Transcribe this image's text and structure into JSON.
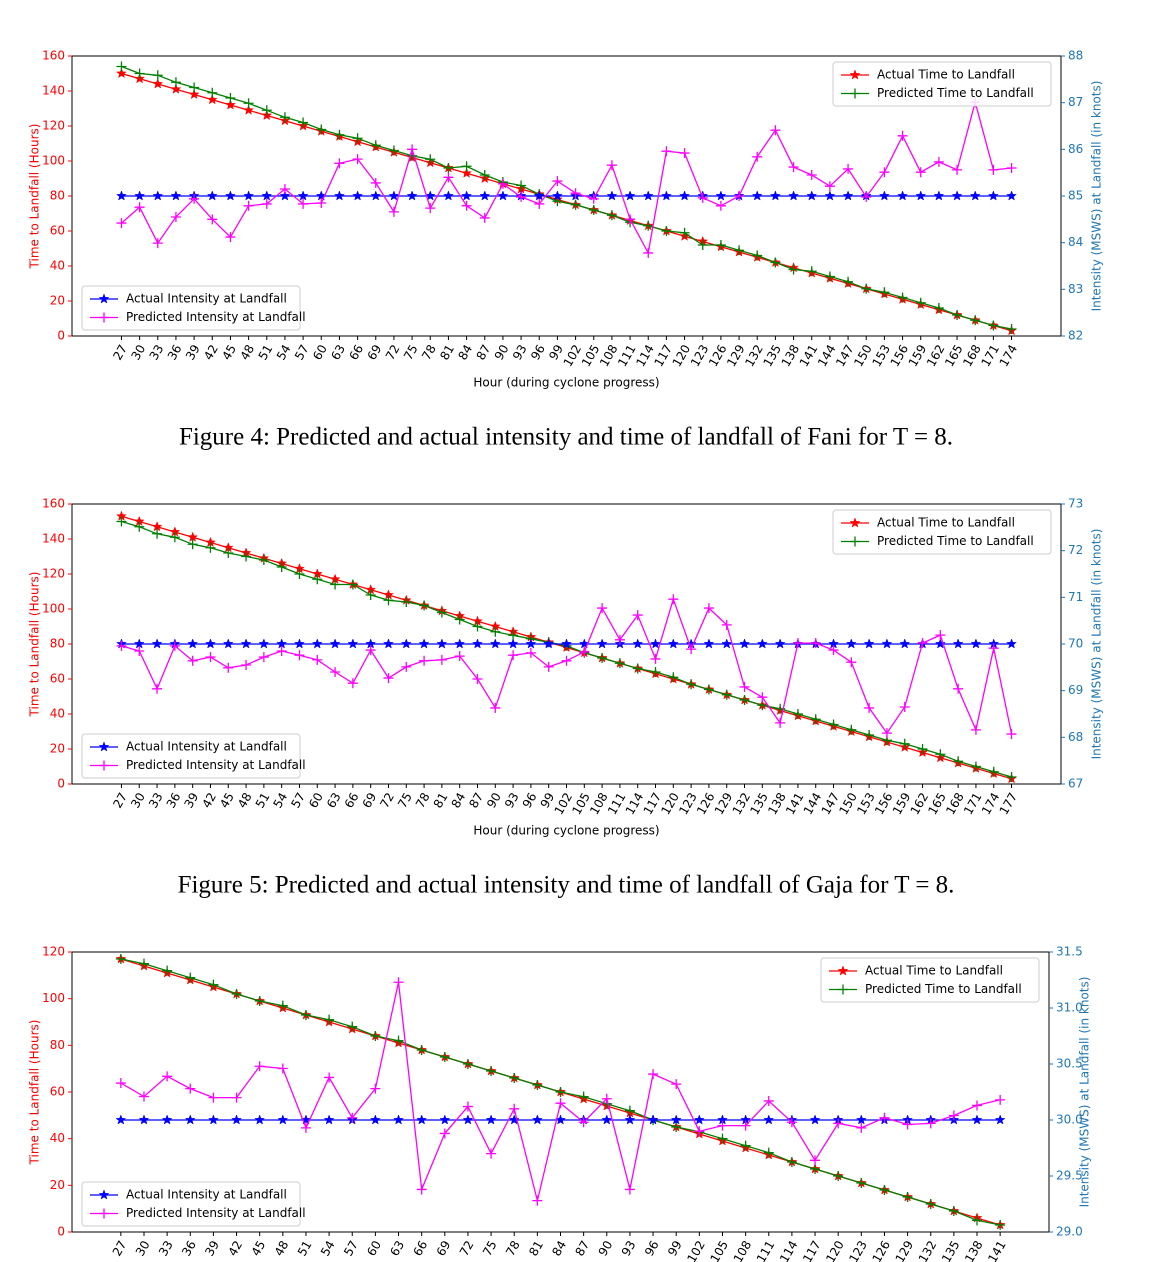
{
  "chart_data": [
    {
      "type": "line",
      "caption": "Figure 4: Predicted and actual intensity and time of landfall of Fani for T = 8.",
      "xlabel": "Hour (during cyclone progress)",
      "ylabel": "Time to Landfall (Hours)",
      "y2label": "Intensity (MSWS) at Landfall (in knots)",
      "categories": [
        "27",
        "30",
        "33",
        "36",
        "39",
        "42",
        "45",
        "48",
        "51",
        "54",
        "57",
        "60",
        "63",
        "66",
        "69",
        "72",
        "75",
        "78",
        "81",
        "84",
        "87",
        "90",
        "93",
        "96",
        "99",
        "102",
        "105",
        "108",
        "111",
        "114",
        "117",
        "120",
        "123",
        "126",
        "129",
        "132",
        "135",
        "138",
        "141",
        "144",
        "147",
        "150",
        "153",
        "156",
        "159",
        "162",
        "165",
        "168",
        "171",
        "174"
      ],
      "ylim": [
        0,
        160
      ],
      "yticks": [
        0,
        20,
        40,
        60,
        80,
        100,
        120,
        140,
        160
      ],
      "y2lim": [
        82,
        88
      ],
      "y2ticks": [
        82,
        83,
        84,
        85,
        86,
        87,
        88
      ],
      "legend_loc": "upper right",
      "legend2_loc": "lower left",
      "ylabel_color": "#ff0000",
      "y2label_color": "#1f77b4",
      "series": [
        {
          "name": "Actual Time to Landfall",
          "color": "#ff0000",
          "marker": "star",
          "values": [
            150,
            147,
            144,
            141,
            138,
            135,
            132,
            129,
            126,
            123,
            120,
            117,
            114,
            111,
            108,
            105,
            102,
            99,
            96,
            93,
            90,
            87,
            84,
            81,
            78,
            75,
            72,
            69,
            66,
            63,
            60,
            57,
            54,
            51,
            48,
            45,
            42,
            39,
            36,
            33,
            30,
            27,
            24,
            21,
            18,
            15,
            12,
            9,
            6,
            3
          ]
        },
        {
          "name": "Predicted Time to Landfall",
          "color": "#008000",
          "marker": "plus",
          "values": [
            154,
            150,
            149,
            145,
            142,
            139,
            136,
            133,
            129,
            125,
            122,
            118,
            115,
            113,
            109,
            106,
            103,
            101,
            96,
            97,
            92,
            88,
            86,
            81,
            77,
            75,
            72,
            69,
            65,
            63,
            60,
            59,
            52,
            52,
            49,
            46,
            42,
            38,
            37,
            34,
            31,
            27,
            25,
            22,
            19,
            16,
            12,
            9,
            6,
            4
          ]
        },
        {
          "name": "Actual Intensity at Landfall",
          "color": "#0000ff",
          "marker": "star",
          "axis": "y2",
          "values": [
            85,
            85,
            85,
            85,
            85,
            85,
            85,
            85,
            85,
            85,
            85,
            85,
            85,
            85,
            85,
            85,
            85,
            85,
            85,
            85,
            85,
            85,
            85,
            85,
            85,
            85,
            85,
            85,
            85,
            85,
            85,
            85,
            85,
            85,
            85,
            85,
            85,
            85,
            85,
            85,
            85,
            85,
            85,
            85,
            85,
            85,
            85,
            85,
            85,
            85
          ]
        },
        {
          "name": "Predicted Intensity at Landfall",
          "color": "#ff00ff",
          "marker": "plus",
          "axis": "y2",
          "values": [
            84.42,
            84.76,
            83.99,
            84.55,
            84.94,
            84.5,
            84.12,
            84.79,
            84.83,
            85.15,
            84.83,
            84.85,
            85.7,
            85.79,
            85.28,
            84.66,
            86.0,
            84.74,
            85.4,
            84.79,
            84.53,
            85.26,
            84.98,
            84.83,
            85.32,
            85.06,
            84.94,
            85.66,
            84.5,
            83.78,
            85.96,
            85.92,
            84.96,
            84.79,
            85.0,
            85.84,
            86.41,
            85.62,
            85.45,
            85.21,
            85.58,
            84.98,
            85.51,
            86.29,
            85.51,
            85.73,
            85.56,
            87.01,
            85.56,
            85.6
          ]
        }
      ]
    },
    {
      "type": "line",
      "caption": "Figure 5: Predicted and actual intensity and time of landfall of Gaja for T = 8.",
      "xlabel": "Hour (during cyclone progress)",
      "ylabel": "Time to Landfall (Hours)",
      "y2label": "Intensity (MSWS) at Landfall (in knots)",
      "categories": [
        "27",
        "30",
        "33",
        "36",
        "39",
        "42",
        "45",
        "48",
        "51",
        "54",
        "57",
        "60",
        "63",
        "66",
        "69",
        "72",
        "75",
        "78",
        "81",
        "84",
        "87",
        "90",
        "93",
        "96",
        "99",
        "102",
        "105",
        "108",
        "111",
        "114",
        "117",
        "120",
        "123",
        "126",
        "129",
        "132",
        "135",
        "138",
        "141",
        "144",
        "147",
        "150",
        "153",
        "156",
        "159",
        "162",
        "165",
        "168",
        "171",
        "174",
        "177"
      ],
      "ylim": [
        0,
        160
      ],
      "yticks": [
        0,
        20,
        40,
        60,
        80,
        100,
        120,
        140,
        160
      ],
      "y2lim": [
        67,
        73
      ],
      "y2ticks": [
        67,
        68,
        69,
        70,
        71,
        72,
        73
      ],
      "legend_loc": "upper right",
      "legend2_loc": "lower left",
      "ylabel_color": "#ff0000",
      "y2label_color": "#1f77b4",
      "series": [
        {
          "name": "Actual Time to Landfall",
          "color": "#ff0000",
          "marker": "star",
          "values": [
            153,
            150,
            147,
            144,
            141,
            138,
            135,
            132,
            129,
            126,
            123,
            120,
            117,
            114,
            111,
            108,
            105,
            102,
            99,
            96,
            93,
            90,
            87,
            84,
            81,
            78,
            75,
            72,
            69,
            66,
            63,
            60,
            57,
            54,
            51,
            48,
            45,
            42,
            39,
            36,
            33,
            30,
            27,
            24,
            21,
            18,
            15,
            12,
            9,
            6,
            3
          ]
        },
        {
          "name": "Predicted Time to Landfall",
          "color": "#008000",
          "marker": "plus",
          "values": [
            150,
            147,
            143,
            141,
            137,
            135,
            132,
            130,
            128,
            124,
            120,
            117,
            114,
            114,
            108,
            105,
            104,
            102,
            98,
            94,
            90,
            87,
            85,
            83,
            81,
            79,
            75,
            72,
            69,
            66,
            64,
            61,
            57,
            54,
            51,
            48,
            45,
            43,
            40,
            37,
            34,
            31,
            28,
            25,
            23,
            20,
            17,
            13,
            10,
            7,
            4
          ]
        },
        {
          "name": "Actual Intensity at Landfall",
          "color": "#0000ff",
          "marker": "star",
          "axis": "y2",
          "values": [
            70,
            70,
            70,
            70,
            70,
            70,
            70,
            70,
            70,
            70,
            70,
            70,
            70,
            70,
            70,
            70,
            70,
            70,
            70,
            70,
            70,
            70,
            70,
            70,
            70,
            70,
            70,
            70,
            70,
            70,
            70,
            70,
            70,
            70,
            70,
            70,
            70,
            70,
            70,
            70,
            70,
            70,
            70,
            70,
            70,
            70,
            70,
            70,
            70,
            70,
            70
          ]
        },
        {
          "name": "Predicted Intensity at Landfall",
          "color": "#ff00ff",
          "marker": "plus",
          "axis": "y2",
          "values": [
            69.96,
            69.85,
            69.04,
            69.96,
            69.64,
            69.72,
            69.49,
            69.55,
            69.72,
            69.85,
            69.76,
            69.66,
            69.4,
            69.16,
            69.87,
            69.27,
            69.51,
            69.64,
            69.66,
            69.74,
            69.25,
            68.63,
            69.76,
            69.81,
            69.51,
            69.64,
            69.83,
            70.77,
            70.09,
            70.62,
            69.68,
            70.96,
            69.89,
            70.77,
            70.41,
            69.08,
            68.86,
            68.31,
            70.02,
            70.02,
            69.87,
            69.61,
            68.63,
            68.09,
            68.65,
            70.02,
            70.19,
            69.04,
            68.16,
            69.91,
            68.07
          ]
        }
      ]
    },
    {
      "type": "line",
      "ylabel": "Time to Landfall (Hours)",
      "y2label": "Intensity (MSWS) at Landfall (in knots)",
      "categories": [
        "27",
        "30",
        "33",
        "36",
        "39",
        "42",
        "45",
        "48",
        "51",
        "54",
        "57",
        "60",
        "63",
        "66",
        "69",
        "72",
        "75",
        "78",
        "81",
        "84",
        "87",
        "90",
        "93",
        "96",
        "99",
        "102",
        "105",
        "108",
        "111",
        "114",
        "117",
        "120",
        "123",
        "126",
        "129",
        "132",
        "135",
        "138",
        "141"
      ],
      "ylim": [
        0,
        120
      ],
      "yticks": [
        0,
        20,
        40,
        60,
        80,
        100,
        120
      ],
      "y2lim": [
        29,
        31.5
      ],
      "y2ticks": [
        {
          "value": 29,
          "label": "29.0"
        },
        29.5,
        {
          "value": 30,
          "label": "30.0"
        },
        30.5,
        {
          "value": 31,
          "label": "31.0"
        },
        31.5
      ],
      "legend_loc": "upper right",
      "legend2_loc": "lower left",
      "ylabel_color": "#ff0000",
      "y2label_color": "#1f77b4",
      "series": [
        {
          "name": "Actual Time to Landfall",
          "color": "#ff0000",
          "marker": "star",
          "values": [
            117,
            114,
            111,
            108,
            105,
            102,
            99,
            96,
            93,
            90,
            87,
            84,
            81,
            78,
            75,
            72,
            69,
            66,
            63,
            60,
            57,
            54,
            51,
            48,
            45,
            42,
            39,
            36,
            33,
            30,
            27,
            24,
            21,
            18,
            15,
            12,
            9,
            6,
            3
          ]
        },
        {
          "name": "Predicted Time to Landfall",
          "color": "#008000",
          "marker": "plus",
          "values": [
            117,
            115,
            112,
            109,
            106,
            102,
            99,
            97,
            93,
            91,
            88,
            84,
            82,
            78,
            75,
            72,
            69,
            66,
            63,
            60,
            58,
            55,
            52,
            48,
            45,
            43,
            40,
            37,
            34,
            30,
            27,
            24,
            21,
            18,
            15,
            12,
            9,
            5,
            3
          ]
        },
        {
          "name": "Actual Intensity at Landfall",
          "color": "#0000ff",
          "marker": "star",
          "axis": "y2",
          "values": [
            30,
            30,
            30,
            30,
            30,
            30,
            30,
            30,
            30,
            30,
            30,
            30,
            30,
            30,
            30,
            30,
            30,
            30,
            30,
            30,
            30,
            30,
            30,
            30,
            30,
            30,
            30,
            30,
            30,
            30,
            30,
            30,
            30,
            30,
            30,
            30,
            30,
            30,
            30
          ]
        },
        {
          "name": "Predicted Intensity at Landfall",
          "color": "#ff00ff",
          "marker": "plus",
          "axis": "y2",
          "values": [
            30.33,
            30.21,
            30.39,
            30.28,
            30.2,
            30.2,
            30.48,
            30.46,
            29.93,
            30.38,
            30.02,
            30.28,
            31.23,
            29.38,
            29.88,
            30.12,
            29.7,
            30.1,
            29.28,
            30.15,
            29.98,
            30.19,
            29.38,
            30.41,
            30.32,
            29.9,
            29.95,
            29.95,
            30.17,
            29.98,
            29.64,
            29.97,
            29.93,
            30.02,
            29.96,
            29.97,
            30.04,
            30.13,
            30.18
          ]
        }
      ]
    }
  ]
}
